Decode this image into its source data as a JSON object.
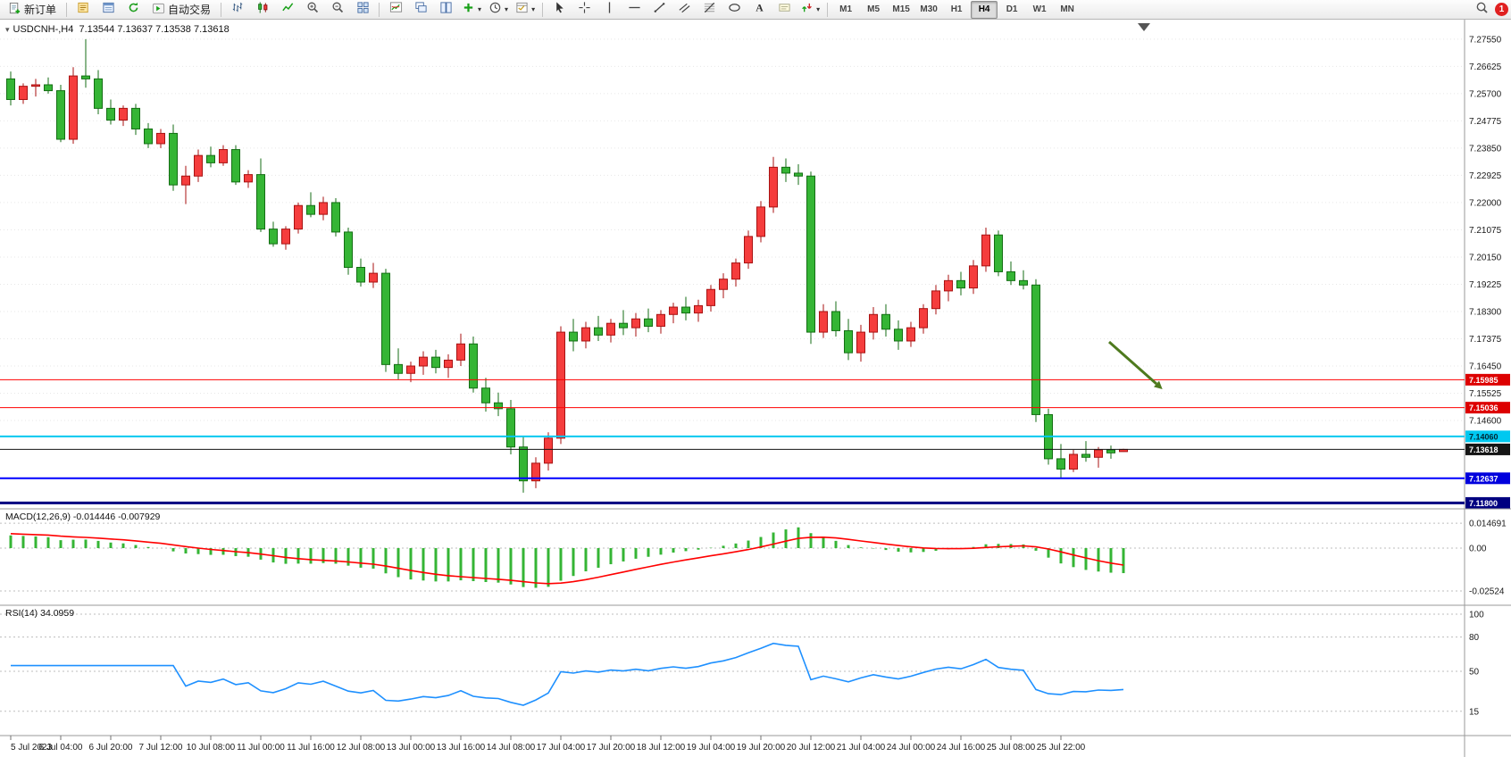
{
  "window": {
    "badge_count": "1"
  },
  "toolbar": {
    "new_order": "新订单",
    "auto_trading": "自动交易",
    "timeframes": [
      "M1",
      "M5",
      "M15",
      "M30",
      "H1",
      "H4",
      "D1",
      "W1",
      "MN"
    ],
    "active_timeframe": "H4"
  },
  "chart": {
    "title": "USDCNH-,H4",
    "ohlc_text": "7.13544 7.13637 7.13538 7.13618",
    "macd_label": "MACD(12,26,9)",
    "macd_values": "-0.014446 -0.007929",
    "rsi_label": "RSI(14)",
    "rsi_value": "34.0959"
  },
  "colors": {
    "up": "#f53d3d",
    "up_dark": "#a81212",
    "down": "#35b535",
    "down_dark": "#146e14",
    "macd_hist": "#35b535",
    "macd_signal": "#ff0000",
    "rsi_line": "#1e90ff",
    "grid": "#e7e7e7",
    "axis_line": "#9a9a9a",
    "arrow": "#4e7a1e"
  },
  "chart_data": {
    "type": "candlestick",
    "symbol": "USDCNH-",
    "period": "H4",
    "current_bar": {
      "open": "7.13544",
      "high": "7.13637",
      "low": "7.13538",
      "close": "7.13618"
    },
    "price_axis": {
      "min": 7.116,
      "max": 7.2797,
      "ticks": [
        "7.27550",
        "7.26625",
        "7.25700",
        "7.24775",
        "7.23850",
        "7.22925",
        "7.22000",
        "7.21075",
        "7.20150",
        "7.19225",
        "7.18300",
        "7.17375",
        "7.16450",
        "7.15525",
        "7.14600"
      ]
    },
    "time_labels": [
      "5 Jul 2023",
      "6 Jul 04:00",
      "6 Jul 20:00",
      "7 Jul 12:00",
      "10 Jul 08:00",
      "11 Jul 00:00",
      "11 Jul 16:00",
      "12 Jul 08:00",
      "13 Jul 00:00",
      "13 Jul 16:00",
      "14 Jul 08:00",
      "17 Jul 04:00",
      "17 Jul 20:00",
      "18 Jul 12:00",
      "19 Jul 04:00",
      "19 Jul 20:00",
      "20 Jul 12:00",
      "21 Jul 04:00",
      "24 Jul 00:00",
      "24 Jul 16:00",
      "25 Jul 08:00",
      "25 Jul 22:00"
    ],
    "candles": [
      [
        7.262,
        7.2645,
        7.253,
        7.255
      ],
      [
        7.255,
        7.2605,
        7.2535,
        7.2595
      ],
      [
        7.2595,
        7.262,
        7.256,
        7.26
      ],
      [
        7.26,
        7.2625,
        7.257,
        7.258
      ],
      [
        7.258,
        7.26,
        7.2405,
        7.2415
      ],
      [
        7.2415,
        7.266,
        7.24,
        7.263
      ],
      [
        7.263,
        7.2755,
        7.259,
        7.262
      ],
      [
        7.262,
        7.265,
        7.25,
        7.252
      ],
      [
        7.252,
        7.255,
        7.2465,
        7.248
      ],
      [
        7.248,
        7.253,
        7.246,
        7.252
      ],
      [
        7.252,
        7.2535,
        7.243,
        7.245
      ],
      [
        7.245,
        7.247,
        7.2385,
        7.24
      ],
      [
        7.24,
        7.245,
        7.2385,
        7.2435
      ],
      [
        7.2435,
        7.2465,
        7.224,
        7.226
      ],
      [
        7.226,
        7.2325,
        7.2195,
        7.229
      ],
      [
        7.229,
        7.238,
        7.227,
        7.236
      ],
      [
        7.236,
        7.239,
        7.232,
        7.2335
      ],
      [
        7.2335,
        7.2395,
        7.2325,
        7.238
      ],
      [
        7.238,
        7.2395,
        7.226,
        7.227
      ],
      [
        7.227,
        7.231,
        7.225,
        7.2295
      ],
      [
        7.2295,
        7.235,
        7.21,
        7.211
      ],
      [
        7.211,
        7.2135,
        7.205,
        7.206
      ],
      [
        7.206,
        7.212,
        7.204,
        7.211
      ],
      [
        7.211,
        7.22,
        7.2095,
        7.219
      ],
      [
        7.219,
        7.2235,
        7.215,
        7.216
      ],
      [
        7.216,
        7.222,
        7.214,
        7.22
      ],
      [
        7.22,
        7.2215,
        7.2085,
        7.21
      ],
      [
        7.21,
        7.2115,
        7.1955,
        7.198
      ],
      [
        7.198,
        7.201,
        7.1915,
        7.193
      ],
      [
        7.193,
        7.1995,
        7.191,
        7.196
      ],
      [
        7.196,
        7.1975,
        7.1625,
        7.165
      ],
      [
        7.165,
        7.1705,
        7.16,
        7.162
      ],
      [
        7.162,
        7.166,
        7.159,
        7.1645
      ],
      [
        7.1645,
        7.1695,
        7.1615,
        7.1675
      ],
      [
        7.1675,
        7.17,
        7.162,
        7.164
      ],
      [
        7.164,
        7.1685,
        7.1605,
        7.1665
      ],
      [
        7.1665,
        7.1755,
        7.1645,
        7.172
      ],
      [
        7.172,
        7.1745,
        7.1555,
        7.157
      ],
      [
        7.157,
        7.1605,
        7.149,
        7.152
      ],
      [
        7.152,
        7.1555,
        7.1475,
        7.15
      ],
      [
        7.15,
        7.153,
        7.1345,
        7.137
      ],
      [
        7.137,
        7.1405,
        7.1215,
        7.1255
      ],
      [
        7.1255,
        7.1335,
        7.123,
        7.1315
      ],
      [
        7.1315,
        7.142,
        7.129,
        7.14
      ],
      [
        7.14,
        7.178,
        7.138,
        7.176
      ],
      [
        7.176,
        7.1805,
        7.1695,
        7.173
      ],
      [
        7.173,
        7.1795,
        7.1705,
        7.1775
      ],
      [
        7.1775,
        7.1815,
        7.173,
        7.175
      ],
      [
        7.175,
        7.1805,
        7.1725,
        7.179
      ],
      [
        7.179,
        7.1835,
        7.175,
        7.1775
      ],
      [
        7.1775,
        7.1825,
        7.1745,
        7.1805
      ],
      [
        7.1805,
        7.184,
        7.176,
        7.178
      ],
      [
        7.178,
        7.1835,
        7.1755,
        7.182
      ],
      [
        7.182,
        7.186,
        7.179,
        7.1845
      ],
      [
        7.1845,
        7.188,
        7.18,
        7.1825
      ],
      [
        7.1825,
        7.187,
        7.1795,
        7.185
      ],
      [
        7.185,
        7.192,
        7.183,
        7.1905
      ],
      [
        7.1905,
        7.196,
        7.1875,
        7.194
      ],
      [
        7.194,
        7.201,
        7.1915,
        7.1995
      ],
      [
        7.1995,
        7.2105,
        7.1975,
        7.2085
      ],
      [
        7.2085,
        7.2205,
        7.2065,
        7.2185
      ],
      [
        7.2185,
        7.2355,
        7.2165,
        7.232
      ],
      [
        7.232,
        7.235,
        7.227,
        7.23
      ],
      [
        7.23,
        7.233,
        7.226,
        7.229
      ],
      [
        7.229,
        7.2305,
        7.172,
        7.176
      ],
      [
        7.176,
        7.1855,
        7.174,
        7.183
      ],
      [
        7.183,
        7.1865,
        7.1745,
        7.1765
      ],
      [
        7.1765,
        7.1805,
        7.1665,
        7.169
      ],
      [
        7.169,
        7.1785,
        7.166,
        7.176
      ],
      [
        7.176,
        7.1845,
        7.1735,
        7.182
      ],
      [
        7.182,
        7.1855,
        7.1745,
        7.177
      ],
      [
        7.177,
        7.18,
        7.17,
        7.173
      ],
      [
        7.173,
        7.1795,
        7.171,
        7.1775
      ],
      [
        7.1775,
        7.1855,
        7.1755,
        7.184
      ],
      [
        7.184,
        7.192,
        7.182,
        7.19
      ],
      [
        7.19,
        7.1955,
        7.1865,
        7.1935
      ],
      [
        7.1935,
        7.1965,
        7.1885,
        7.191
      ],
      [
        7.191,
        7.2005,
        7.189,
        7.1985
      ],
      [
        7.1985,
        7.2115,
        7.1965,
        7.209
      ],
      [
        7.209,
        7.2105,
        7.195,
        7.1965
      ],
      [
        7.1965,
        7.2,
        7.192,
        7.1935
      ],
      [
        7.1935,
        7.197,
        7.1905,
        7.192
      ],
      [
        7.192,
        7.194,
        7.1455,
        7.148
      ],
      [
        7.148,
        7.15,
        7.131,
        7.133
      ],
      [
        7.133,
        7.138,
        7.1262,
        7.1295
      ],
      [
        7.1295,
        7.136,
        7.1285,
        7.1345
      ],
      [
        7.1345,
        7.139,
        7.132,
        7.1335
      ],
      [
        7.1335,
        7.137,
        7.13,
        7.136
      ],
      [
        7.136,
        7.1375,
        7.133,
        7.135
      ],
      [
        7.13544,
        7.13637,
        7.13538,
        7.13618
      ]
    ],
    "hlines": [
      {
        "name": "resistance-line-upper",
        "label": "7.15985",
        "value": 7.15985,
        "color": "#ff0000",
        "width": 1,
        "tag_bg": "#dd0000",
        "tag_text": "#ffffff"
      },
      {
        "name": "resistance-line-lower",
        "label": "7.15036",
        "value": 7.15036,
        "color": "#ff0000",
        "width": 1,
        "tag_bg": "#dd0000",
        "tag_text": "#ffffff"
      },
      {
        "name": "support-line-cyan",
        "label": "7.14060",
        "value": 7.1406,
        "color": "#00c8f0",
        "width": 2,
        "tag_bg": "#00c8f0",
        "tag_text": "#002633"
      },
      {
        "name": "bid-price-line",
        "label": "7.13618",
        "value": 7.13618,
        "color": "#151515",
        "width": 1,
        "tag_bg": "#151515",
        "tag_text": "#ffffff"
      },
      {
        "name": "support-line-blue",
        "label": "7.12637",
        "value": 7.12637,
        "color": "#0000ff",
        "width": 2,
        "tag_bg": "#0000dd",
        "tag_text": "#ffffff"
      },
      {
        "name": "support-line-navy",
        "label": "7.11800",
        "value": 7.118,
        "color": "#000080",
        "width": 3,
        "tag_bg": "#000080",
        "tag_text": "#ffffff"
      }
    ],
    "macd": {
      "params": "12,26,9",
      "value": -0.014446,
      "signal_value": -0.007929,
      "axis": [
        {
          "label": "0.014691",
          "value": 0.014691
        },
        {
          "label": "0.00",
          "value": 0
        },
        {
          "label": "-0.02524",
          "value": -0.02524
        }
      ]
    },
    "rsi": {
      "period": 14,
      "value": 34.0959,
      "levels": [
        {
          "label": "100",
          "value": 100
        },
        {
          "label": "80",
          "value": 80
        },
        {
          "label": "50",
          "value": 50
        },
        {
          "label": "15",
          "value": 15
        }
      ]
    },
    "annotation_arrow": {
      "from": [
        1242,
        361
      ],
      "to": [
        1295,
        408
      ],
      "color": "#4e7a1e"
    }
  }
}
